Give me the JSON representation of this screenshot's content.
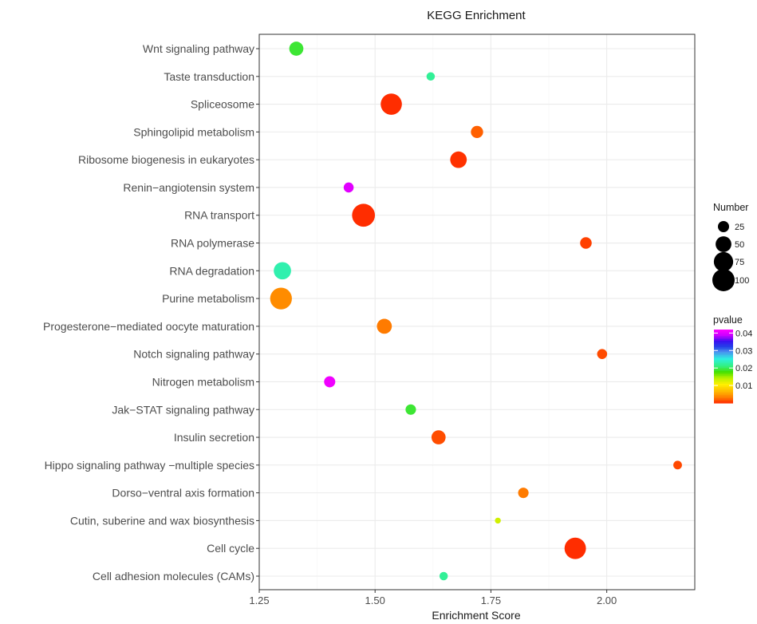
{
  "chart_data": {
    "type": "scatter",
    "title": "KEGG Enrichment",
    "xlabel": "Enrichment Score",
    "ylabel": "",
    "xlim": [
      1.25,
      2.19
    ],
    "x_ticks": [
      1.25,
      1.5,
      1.75,
      2.0
    ],
    "x_tick_labels": [
      "1.25",
      "1.50",
      "1.75",
      "2.00"
    ],
    "grid": true,
    "size_legend": {
      "title": "Number",
      "values": [
        25,
        50,
        75,
        100
      ],
      "labels": [
        "25",
        "50",
        "75",
        "100"
      ]
    },
    "color_legend": {
      "title": "pvalue",
      "min": 0.0,
      "max": 0.042,
      "ticks": [
        0.01,
        0.02,
        0.03,
        0.04
      ],
      "tick_labels": [
        "0.01",
        "0.02",
        "0.03",
        "0.04"
      ]
    },
    "legend_position": "right",
    "points": [
      {
        "term": "Wnt signaling pathway",
        "x": 1.33,
        "number": 40,
        "pvalue": 0.019
      },
      {
        "term": "Taste transduction",
        "x": 1.62,
        "number": 14,
        "pvalue": 0.022
      },
      {
        "term": "Spliceosome",
        "x": 1.535,
        "number": 90,
        "pvalue": 0.0001
      },
      {
        "term": "Sphingolipid metabolism",
        "x": 1.72,
        "number": 30,
        "pvalue": 0.002
      },
      {
        "term": "Ribosome biogenesis in eukaryotes",
        "x": 1.68,
        "number": 55,
        "pvalue": 0.0003
      },
      {
        "term": "Renin−angiotensin system",
        "x": 1.443,
        "number": 20,
        "pvalue": 0.04
      },
      {
        "term": "RNA transport",
        "x": 1.475,
        "number": 105,
        "pvalue": 0.0001
      },
      {
        "term": "RNA polymerase",
        "x": 1.955,
        "number": 27,
        "pvalue": 0.0008
      },
      {
        "term": "RNA degradation",
        "x": 1.3,
        "number": 60,
        "pvalue": 0.023
      },
      {
        "term": "Purine metabolism",
        "x": 1.297,
        "number": 95,
        "pvalue": 0.004
      },
      {
        "term": "Progesterone−mediated oocyte maturation",
        "x": 1.52,
        "number": 45,
        "pvalue": 0.003
      },
      {
        "term": "Notch signaling pathway",
        "x": 1.99,
        "number": 20,
        "pvalue": 0.0012
      },
      {
        "term": "Nitrogen metabolism",
        "x": 1.402,
        "number": 25,
        "pvalue": 0.041
      },
      {
        "term": "Jak−STAT signaling pathway",
        "x": 1.577,
        "number": 22,
        "pvalue": 0.019
      },
      {
        "term": "Insulin secretion",
        "x": 1.637,
        "number": 40,
        "pvalue": 0.0013
      },
      {
        "term": "Hippo signaling pathway −multiple species",
        "x": 2.153,
        "number": 15,
        "pvalue": 0.0011
      },
      {
        "term": "Dorso−ventral axis formation",
        "x": 1.82,
        "number": 22,
        "pvalue": 0.003
      },
      {
        "term": "Cutin, suberine and wax biosynthesis",
        "x": 1.765,
        "number": 7,
        "pvalue": 0.013
      },
      {
        "term": "Cell cycle",
        "x": 1.932,
        "number": 92,
        "pvalue": 0.0001
      },
      {
        "term": "Cell adhesion molecules (CAMs)",
        "x": 1.648,
        "number": 14,
        "pvalue": 0.022
      }
    ]
  }
}
